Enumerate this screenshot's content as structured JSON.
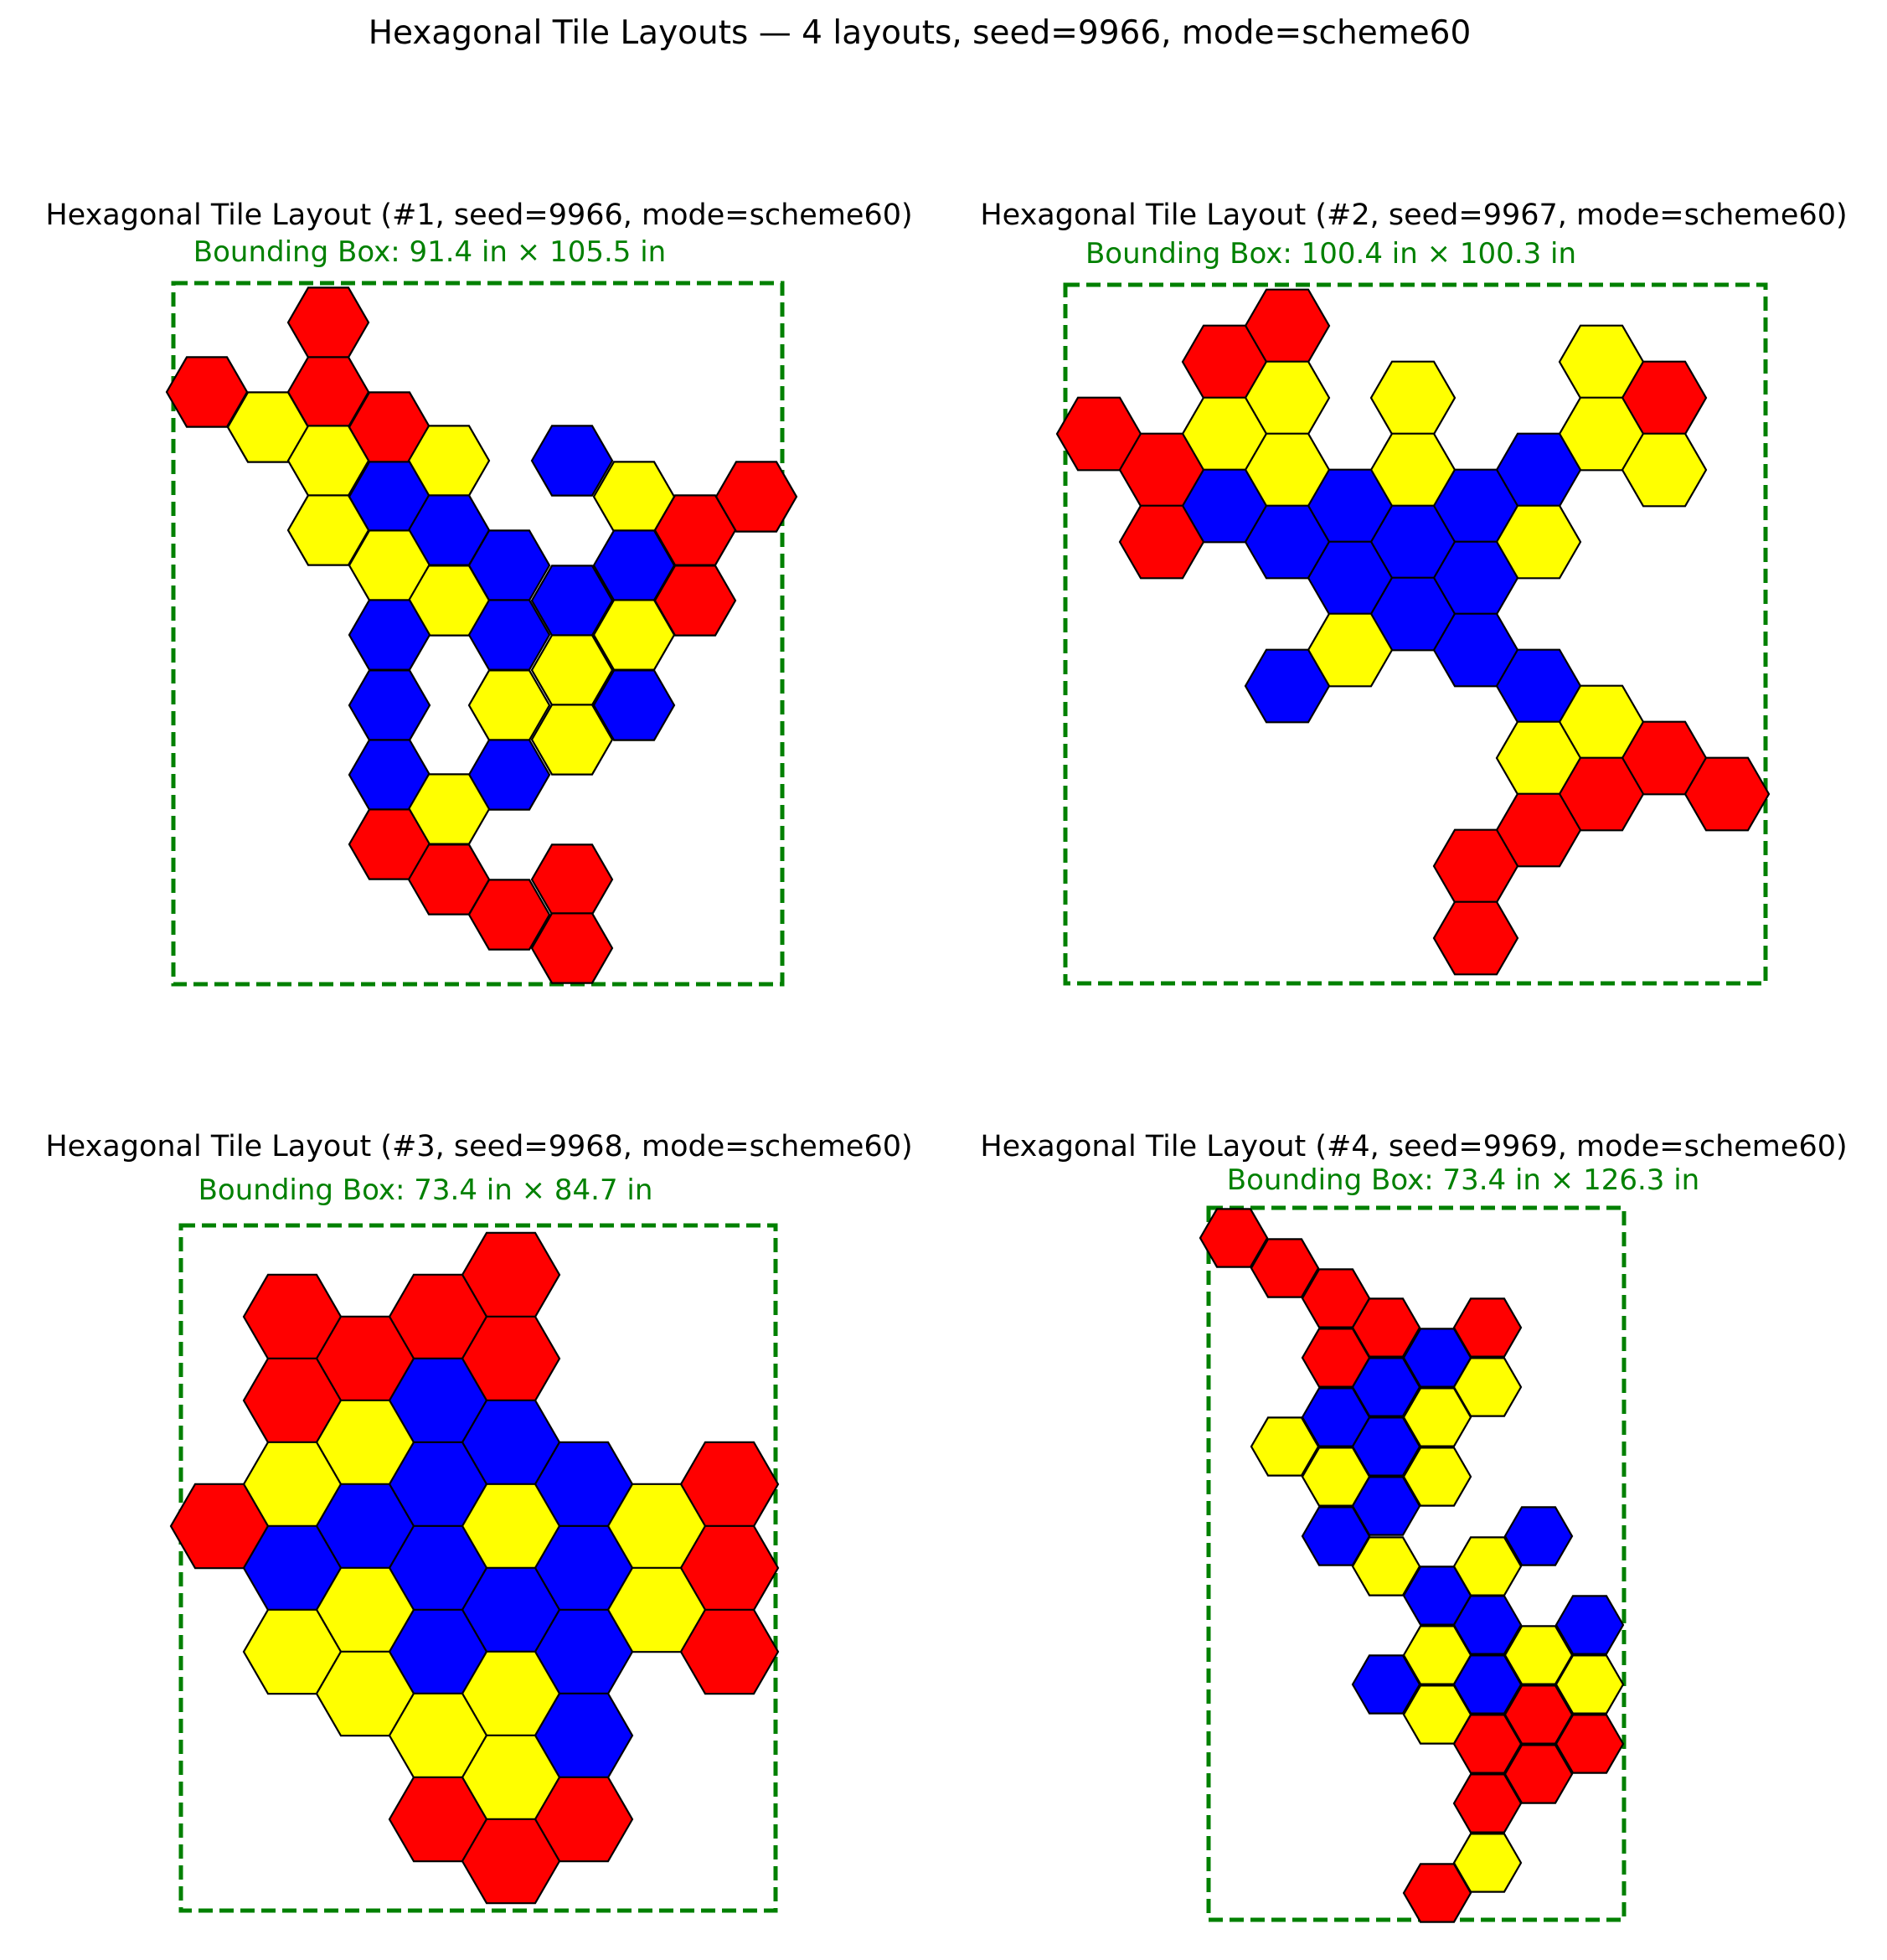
{
  "figure": {
    "title": "Hexagonal Tile Layouts — 4 layouts, seed=9966, mode=scheme60"
  },
  "colors": {
    "R": "#ff0000",
    "Y": "#ffff00",
    "B": "#0000ff",
    "box": "#008000",
    "outline": "#000000"
  },
  "panels": [
    {
      "title": "Hexagonal Tile Layout  (#1, seed=9966, mode=scheme60)",
      "bbox_label": "Bounding Box: 91.4 in × 105.5 in"
    },
    {
      "title": "Hexagonal Tile Layout  (#2, seed=9967, mode=scheme60)",
      "bbox_label": "Bounding Box: 100.4 in × 100.3 in"
    },
    {
      "title": "Hexagonal Tile Layout  (#3, seed=9968, mode=scheme60)",
      "bbox_label": "Bounding Box: 73.4 in × 84.7 in"
    },
    {
      "title": "Hexagonal Tile Layout  (#4, seed=9969, mode=scheme60)",
      "bbox_label": "Bounding Box: 73.4 in × 126.3 in"
    }
  ]
}
